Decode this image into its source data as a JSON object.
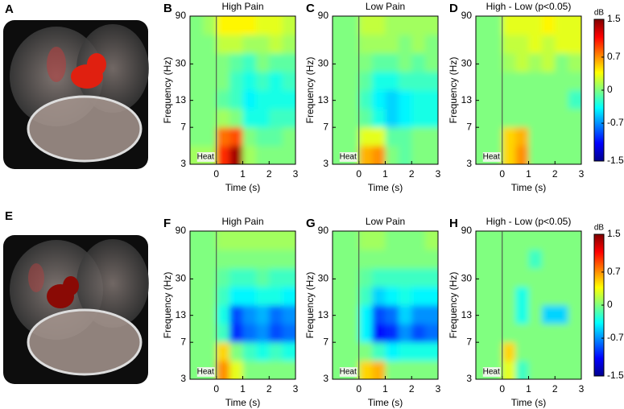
{
  "brain_panels": [
    {
      "label": "A"
    },
    {
      "label": "E"
    }
  ],
  "chart_data": [
    {
      "type": "heatmap",
      "panel_label": "B",
      "title": "High Pain",
      "xlabel": "Time (s)",
      "ylabel": "Frequency (Hz)",
      "x": [
        -0.75,
        -0.25,
        0.25,
        0.75,
        1.25,
        1.75,
        2.25,
        2.75
      ],
      "y": [
        3.7,
        5.7,
        8.7,
        13.3,
        20.4,
        31.1,
        47.6,
        72.8
      ],
      "values": [
        [
          0.1,
          0.1,
          1.0,
          1.4,
          0.1,
          0,
          0,
          0
        ],
        [
          0,
          0,
          0.8,
          0.9,
          0,
          -0.1,
          -0.1,
          0
        ],
        [
          0,
          0,
          0.1,
          0,
          -0.3,
          -0.3,
          -0.2,
          -0.2
        ],
        [
          0,
          0,
          -0.1,
          -0.2,
          -0.4,
          -0.3,
          -0.3,
          -0.3
        ],
        [
          0,
          0,
          0,
          -0.2,
          -0.3,
          -0.2,
          -0.3,
          -0.2
        ],
        [
          0,
          0,
          0,
          -0.1,
          -0.2,
          0,
          -0.1,
          -0.1
        ],
        [
          0,
          0,
          0.2,
          0.2,
          0.1,
          0.1,
          0.2,
          0.1
        ],
        [
          0,
          0.1,
          0.4,
          0.4,
          0.4,
          0.3,
          0.3,
          0.2
        ]
      ],
      "xlim": [
        -1,
        3
      ],
      "ylim": [
        3,
        90
      ],
      "xticks": [
        0,
        1,
        2,
        3
      ],
      "yticks": [
        3,
        7,
        13,
        30,
        90
      ],
      "yscale": "log",
      "colormap": "jet",
      "clim": [
        -1.5,
        1.5
      ],
      "event": {
        "x": 0,
        "label": "Heat"
      }
    },
    {
      "type": "heatmap",
      "panel_label": "C",
      "title": "Low Pain",
      "xlabel": "Time (s)",
      "ylabel": "Frequency (Hz)",
      "x": [
        -0.75,
        -0.25,
        0.25,
        0.75,
        1.25,
        1.75,
        2.25,
        2.75
      ],
      "y": [
        3.7,
        5.7,
        8.7,
        13.3,
        20.4,
        31.1,
        47.6,
        72.8
      ],
      "values": [
        [
          0,
          0,
          0.6,
          0.7,
          0,
          -0.1,
          0,
          0
        ],
        [
          0,
          0,
          0.3,
          0.3,
          -0.1,
          -0.1,
          0,
          0
        ],
        [
          0,
          0,
          -0.1,
          -0.3,
          -0.5,
          -0.4,
          -0.3,
          -0.3
        ],
        [
          0,
          0,
          -0.2,
          -0.4,
          -0.5,
          -0.4,
          -0.3,
          -0.3
        ],
        [
          0,
          0,
          -0.1,
          -0.3,
          -0.3,
          -0.2,
          -0.2,
          -0.2
        ],
        [
          0,
          0,
          0,
          -0.1,
          -0.1,
          0,
          -0.1,
          0
        ],
        [
          0,
          0,
          0.1,
          0.1,
          0.1,
          0,
          0.1,
          0
        ],
        [
          0,
          0,
          0.2,
          0.2,
          0.1,
          0.1,
          0.1,
          0.1
        ]
      ],
      "xlim": [
        -1,
        3
      ],
      "ylim": [
        3,
        90
      ],
      "xticks": [
        0,
        1,
        2,
        3
      ],
      "yticks": [
        3,
        7,
        13,
        30,
        90
      ],
      "yscale": "log",
      "colormap": "jet",
      "clim": [
        -1.5,
        1.5
      ],
      "event": {
        "x": 0,
        "label": "Heat"
      }
    },
    {
      "type": "heatmap",
      "panel_label": "D",
      "title": "High - Low (p<0.05)",
      "xlabel": "Time (s)",
      "ylabel": "Frequency (Hz)",
      "x": [
        -0.75,
        -0.25,
        0.25,
        0.75,
        1.25,
        1.75,
        2.25,
        2.75
      ],
      "y": [
        3.7,
        5.7,
        8.7,
        13.3,
        20.4,
        31.1,
        47.6,
        72.8
      ],
      "values": [
        [
          0,
          0,
          0.5,
          0.7,
          0,
          0,
          0,
          0
        ],
        [
          0,
          0,
          0.5,
          0.6,
          0,
          0,
          0,
          0
        ],
        [
          0,
          0,
          0,
          0,
          0,
          0,
          0,
          0
        ],
        [
          0,
          0,
          0,
          0,
          0,
          0,
          0,
          -0.2
        ],
        [
          0,
          0,
          0,
          0,
          0,
          0,
          0,
          0
        ],
        [
          0,
          0,
          0.1,
          0.2,
          0.1,
          0.2,
          0,
          0.1
        ],
        [
          0,
          0,
          0.2,
          0.2,
          0.3,
          0.2,
          0.3,
          0.3
        ],
        [
          0,
          0,
          0.3,
          0.3,
          0.3,
          0.4,
          0.3,
          0.3
        ]
      ],
      "xlim": [
        -1,
        3
      ],
      "ylim": [
        3,
        90
      ],
      "xticks": [
        0,
        1,
        2,
        3
      ],
      "yticks": [
        3,
        7,
        13,
        30,
        90
      ],
      "yscale": "log",
      "colormap": "jet",
      "clim": [
        -1.5,
        1.5
      ],
      "event": {
        "x": 0,
        "label": "Heat"
      },
      "colorbar": {
        "label": "dB",
        "ticks": [
          1.5,
          0.7,
          0,
          -0.7,
          -1.5
        ]
      }
    },
    {
      "type": "heatmap",
      "panel_label": "F",
      "title": "High Pain",
      "xlabel": "Time (s)",
      "ylabel": "Frequency (Hz)",
      "x": [
        -0.75,
        -0.25,
        0.25,
        0.75,
        1.25,
        1.75,
        2.25,
        2.75
      ],
      "y": [
        3.7,
        5.7,
        8.7,
        13.3,
        20.4,
        31.1,
        47.6,
        72.8
      ],
      "values": [
        [
          0,
          0,
          0.7,
          0.3,
          0,
          0,
          0,
          0
        ],
        [
          0,
          0,
          0.5,
          0,
          -0.2,
          -0.3,
          -0.2,
          -0.3
        ],
        [
          0,
          0,
          -0.2,
          -1.0,
          -0.8,
          -0.7,
          -0.9,
          -0.8
        ],
        [
          0,
          0,
          -0.3,
          -0.9,
          -0.7,
          -0.6,
          -0.8,
          -0.7
        ],
        [
          0,
          0,
          -0.2,
          -0.4,
          -0.4,
          -0.3,
          -0.3,
          -0.4
        ],
        [
          0,
          0,
          -0.1,
          -0.2,
          -0.2,
          -0.1,
          -0.2,
          -0.2
        ],
        [
          0,
          0,
          0,
          0,
          0,
          0,
          0,
          0
        ],
        [
          0,
          0,
          0.1,
          0.1,
          0.1,
          0.1,
          0.1,
          0.1
        ]
      ],
      "xlim": [
        -1,
        3
      ],
      "ylim": [
        3,
        90
      ],
      "xticks": [
        0,
        1,
        2,
        3
      ],
      "yticks": [
        3,
        7,
        13,
        30,
        90
      ],
      "yscale": "log",
      "colormap": "jet",
      "clim": [
        -1.5,
        1.5
      ],
      "event": {
        "x": 0,
        "label": "Heat"
      }
    },
    {
      "type": "heatmap",
      "panel_label": "G",
      "title": "Low Pain",
      "xlabel": "Time (s)",
      "ylabel": "Frequency (Hz)",
      "x": [
        -0.75,
        -0.25,
        0.25,
        0.75,
        1.25,
        1.75,
        2.25,
        2.75
      ],
      "y": [
        3.7,
        5.7,
        8.7,
        13.3,
        20.4,
        31.1,
        47.6,
        72.8
      ],
      "values": [
        [
          0,
          0,
          0.5,
          0.6,
          0,
          0,
          0,
          0
        ],
        [
          0,
          0,
          0,
          -0.2,
          -0.4,
          -0.3,
          -0.3,
          -0.3
        ],
        [
          0,
          0,
          -0.4,
          -1.1,
          -1.0,
          -0.7,
          -0.9,
          -0.8
        ],
        [
          0,
          0,
          -0.4,
          -0.9,
          -0.8,
          -0.5,
          -0.7,
          -0.7
        ],
        [
          0,
          0,
          -0.2,
          -0.5,
          -0.4,
          -0.3,
          -0.4,
          -0.4
        ],
        [
          0,
          0,
          -0.1,
          -0.2,
          -0.2,
          -0.2,
          -0.2,
          -0.2
        ],
        [
          0,
          0,
          0,
          0,
          0,
          0,
          0,
          0
        ],
        [
          0,
          0,
          0.1,
          0.1,
          0,
          0,
          0,
          0.1
        ]
      ],
      "xlim": [
        -1,
        3
      ],
      "ylim": [
        3,
        90
      ],
      "xticks": [
        0,
        1,
        2,
        3
      ],
      "yticks": [
        3,
        7,
        13,
        30,
        90
      ],
      "yscale": "log",
      "colormap": "jet",
      "clim": [
        -1.5,
        1.5
      ],
      "event": {
        "x": 0,
        "label": "Heat"
      }
    },
    {
      "type": "heatmap",
      "panel_label": "H",
      "title": "High - Low (p<0.05)",
      "xlabel": "Time (s)",
      "ylabel": "Frequency (Hz)",
      "x": [
        -0.75,
        -0.25,
        0.25,
        0.75,
        1.25,
        1.75,
        2.25,
        2.75
      ],
      "y": [
        3.7,
        5.7,
        8.7,
        13.3,
        20.4,
        31.1,
        47.6,
        72.8
      ],
      "values": [
        [
          0,
          0,
          0.3,
          -0.2,
          0,
          0,
          0,
          0
        ],
        [
          0,
          0,
          0.5,
          0,
          0,
          0,
          0,
          0
        ],
        [
          0,
          0,
          0,
          0,
          0,
          0,
          0,
          0
        ],
        [
          0,
          0,
          0,
          -0.3,
          0,
          -0.5,
          -0.5,
          0
        ],
        [
          0,
          0,
          0,
          -0.3,
          0,
          0,
          0,
          0
        ],
        [
          0,
          0,
          0,
          0,
          0,
          0,
          0,
          0
        ],
        [
          0,
          0,
          0,
          0,
          -0.2,
          0,
          0,
          0
        ],
        [
          0,
          0,
          0,
          0,
          0,
          0,
          0,
          0
        ]
      ],
      "xlim": [
        -1,
        3
      ],
      "ylim": [
        3,
        90
      ],
      "xticks": [
        0,
        1,
        2,
        3
      ],
      "yticks": [
        3,
        7,
        13,
        30,
        90
      ],
      "yscale": "log",
      "colormap": "jet",
      "clim": [
        -1.5,
        1.5
      ],
      "event": {
        "x": 0,
        "label": "Heat"
      },
      "colorbar": {
        "label": "dB",
        "ticks": [
          1.5,
          0.7,
          0,
          -0.7,
          -1.5
        ]
      }
    }
  ]
}
